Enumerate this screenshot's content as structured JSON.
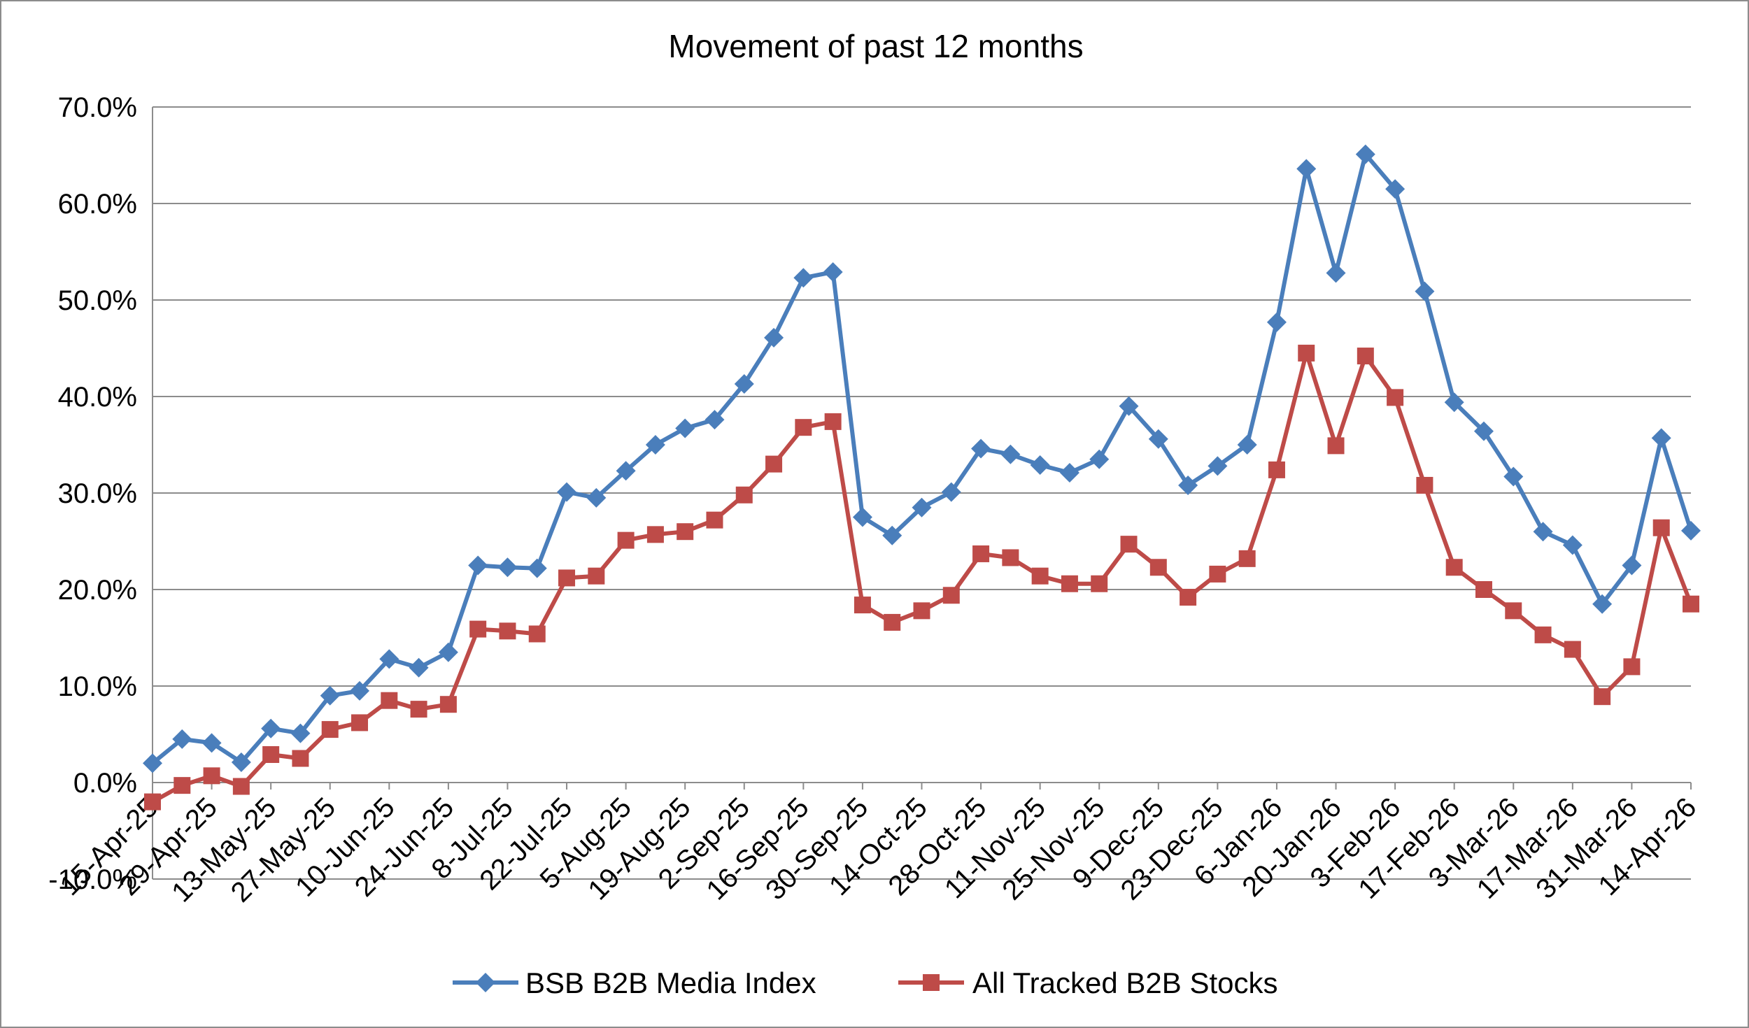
{
  "chart_data": {
    "type": "line",
    "title": "Movement of past 12 months",
    "xlabel": "",
    "ylabel": "",
    "ylim": [
      -10,
      70
    ],
    "y_ticks": [
      "-10.0%",
      "0.0%",
      "10.0%",
      "20.0%",
      "30.0%",
      "40.0%",
      "50.0%",
      "60.0%",
      "70.0%"
    ],
    "x_tick_labels": [
      "15-Apr-25",
      "29-Apr-25",
      "13-May-25",
      "27-May-25",
      "10-Jun-25",
      "24-Jun-25",
      "8-Jul-25",
      "22-Jul-25",
      "5-Aug-25",
      "19-Aug-25",
      "2-Sep-25",
      "16-Sep-25",
      "30-Sep-25",
      "14-Oct-25",
      "28-Oct-25",
      "11-Nov-25",
      "25-Nov-25",
      "9-Dec-25",
      "23-Dec-25",
      "6-Jan-26",
      "20-Jan-26",
      "3-Feb-26",
      "17-Feb-26",
      "3-Mar-26",
      "17-Mar-26",
      "31-Mar-26",
      "14-Apr-26"
    ],
    "grid": true,
    "legend_position": "bottom",
    "series": [
      {
        "name": "BSB B2B Media Index",
        "color": "#4a7ebb",
        "marker": "diamond",
        "values": [
          2.0,
          4.5,
          4.1,
          2.1,
          5.6,
          5.1,
          9.0,
          9.5,
          12.8,
          11.9,
          13.5,
          22.5,
          22.3,
          22.2,
          30.1,
          29.5,
          32.3,
          35.0,
          36.7,
          37.6,
          41.3,
          46.1,
          52.3,
          52.9,
          27.5,
          25.6,
          28.5,
          30.1,
          34.6,
          34.0,
          32.9,
          32.1,
          33.5,
          39.0,
          35.6,
          30.8,
          32.8,
          35.0,
          47.7,
          63.6,
          52.8,
          65.1,
          61.5,
          50.9,
          39.4,
          36.4,
          31.7,
          26.0,
          24.6,
          18.5,
          22.5,
          35.7,
          26.1
        ]
      },
      {
        "name": "All Tracked B2B Stocks",
        "color": "#be4b48",
        "marker": "square",
        "values": [
          -2.0,
          -0.3,
          0.7,
          -0.4,
          2.9,
          2.5,
          5.5,
          6.2,
          8.5,
          7.6,
          8.1,
          15.9,
          15.7,
          15.4,
          21.2,
          21.4,
          25.1,
          25.7,
          26.0,
          27.2,
          29.8,
          33.0,
          36.8,
          37.4,
          18.4,
          16.6,
          17.8,
          19.4,
          23.7,
          23.3,
          21.4,
          20.6,
          20.6,
          24.7,
          22.3,
          19.2,
          21.6,
          23.2,
          32.4,
          44.5,
          34.9,
          44.2,
          39.9,
          30.8,
          22.3,
          20.0,
          17.8,
          15.3,
          13.8,
          8.9,
          12.0,
          26.4,
          18.5
        ]
      }
    ]
  }
}
